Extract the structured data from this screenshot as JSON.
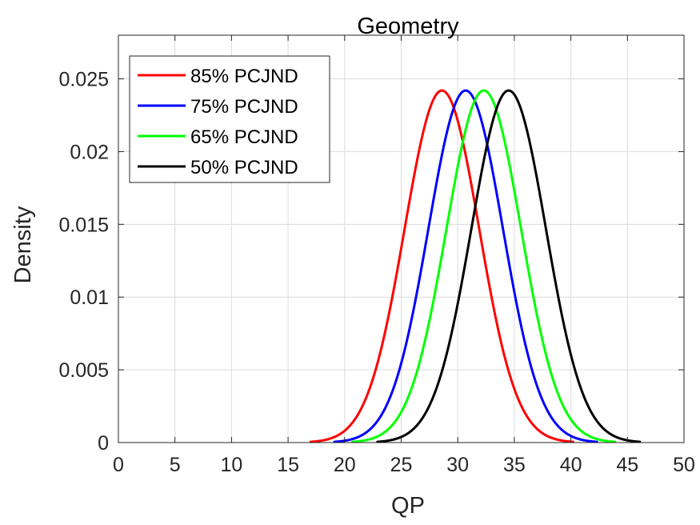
{
  "chart_data": {
    "type": "line",
    "title": "Geometry",
    "xlabel": "QP",
    "ylabel": "Density",
    "xlim": [
      0,
      50
    ],
    "ylim": [
      0,
      0.028
    ],
    "xticks": [
      0,
      5,
      10,
      15,
      20,
      25,
      30,
      35,
      40,
      45,
      50
    ],
    "xtick_labels": [
      "0",
      "5",
      "10",
      "15",
      "20",
      "25",
      "30",
      "35",
      "40",
      "45",
      "50"
    ],
    "yticks": [
      0,
      0.005,
      0.01,
      0.015,
      0.02,
      0.025
    ],
    "ytick_labels": [
      "0",
      "0.005",
      "0.01",
      "0.015",
      "0.02",
      "0.025"
    ],
    "grid": true,
    "legend_position": "top-left",
    "series": [
      {
        "name": "85% PCJND",
        "color": "#ff0000",
        "mean": 28.6,
        "std": 3.3,
        "peak": 0.0242,
        "x_range": [
          17.0,
          40.2
        ]
      },
      {
        "name": "75% PCJND",
        "color": "#0000ff",
        "mean": 30.7,
        "std": 3.3,
        "peak": 0.0242,
        "x_range": [
          19.1,
          42.3
        ]
      },
      {
        "name": "65% PCJND",
        "color": "#00ff00",
        "mean": 32.3,
        "std": 3.3,
        "peak": 0.0242,
        "x_range": [
          20.7,
          43.9
        ]
      },
      {
        "name": "50% PCJND",
        "color": "#000000",
        "mean": 34.5,
        "std": 3.3,
        "peak": 0.0242,
        "x_range": [
          22.9,
          46.1
        ]
      }
    ]
  }
}
